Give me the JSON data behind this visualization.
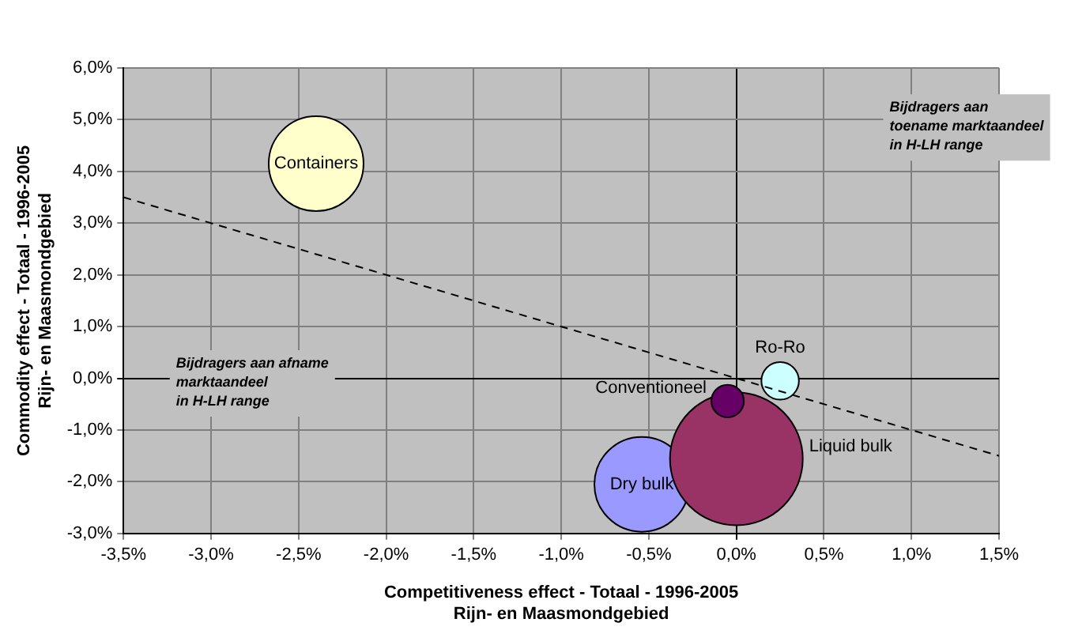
{
  "chart_data": {
    "type": "bubble",
    "xlabel": "Competitiveness effect - Totaal - 1996-2005\nRijn- en Maasmondgebied",
    "ylabel": "Commodity effect - Totaal - 1996-2005\nRijn- en Maasmondgebied",
    "series": [
      {
        "name": "Containers",
        "color": "#ffffcc",
        "x": [
          -2.4
        ],
        "values": [
          4.15
        ],
        "sizes": [
          0.51
        ]
      },
      {
        "name": "Ro-Ro",
        "color": "#ccffff",
        "x": [
          0.25
        ],
        "values": [
          -0.05
        ],
        "sizes": [
          0.08
        ]
      },
      {
        "name": "Conventioneel",
        "color": "#660066",
        "x": [
          -0.05
        ],
        "values": [
          -0.44
        ],
        "sizes": [
          0.06
        ]
      },
      {
        "name": "Liquid bulk",
        "color": "#993366",
        "x": [
          0.0
        ],
        "values": [
          -1.56
        ],
        "sizes": [
          1
        ]
      },
      {
        "name": "Dry bulk",
        "color": "#9999ff",
        "x": [
          -0.54
        ],
        "values": [
          -2.05
        ],
        "sizes": [
          0.51
        ]
      },
      {
        "type": "line",
        "color": "#000000",
        "line_style": "dashed",
        "x": [
          -3.5,
          1.5
        ],
        "values": [
          3.5,
          -1.5
        ]
      }
    ],
    "annotations": [
      "Bijdragers aan\ntoename marktaandeel\nin H-LH range",
      "Bijdragers aan afname\nmarktaandeel\nin H-LH range"
    ],
    "xlim": [
      -3.5,
      1.5
    ],
    "xticks": [
      {
        "value": -3.5,
        "label": "-3,5%"
      },
      {
        "value": -3,
        "label": "-3,0%"
      },
      {
        "value": -2.5,
        "label": "-2,5%"
      },
      {
        "value": -2,
        "label": "-2,0%"
      },
      {
        "value": -1.5,
        "label": "-1,5%"
      },
      {
        "value": -1,
        "label": "-1,0%"
      },
      {
        "value": -0.5,
        "label": "-0,5%"
      },
      {
        "value": 0,
        "label": "0,0%"
      },
      {
        "value": 0.5,
        "label": "0,5%"
      },
      {
        "value": 1,
        "label": "1,0%"
      },
      {
        "value": 1.5,
        "label": "1,5%"
      }
    ],
    "ylim": [
      -3,
      6
    ],
    "yticks": [
      {
        "value": -3,
        "label": "-3,0%"
      },
      {
        "value": -2,
        "label": "-2,0%"
      },
      {
        "value": -1,
        "label": "-1,0%"
      },
      {
        "value": 0,
        "label": "0,0%"
      },
      {
        "value": 1,
        "label": "1,0%"
      },
      {
        "value": 2,
        "label": "2,0%"
      },
      {
        "value": 3,
        "label": "3,0%"
      },
      {
        "value": 4,
        "label": "4,0%"
      },
      {
        "value": 5,
        "label": "5,0%"
      },
      {
        "value": 6,
        "label": "6,0%"
      }
    ],
    "grid": true,
    "legend": false
  }
}
